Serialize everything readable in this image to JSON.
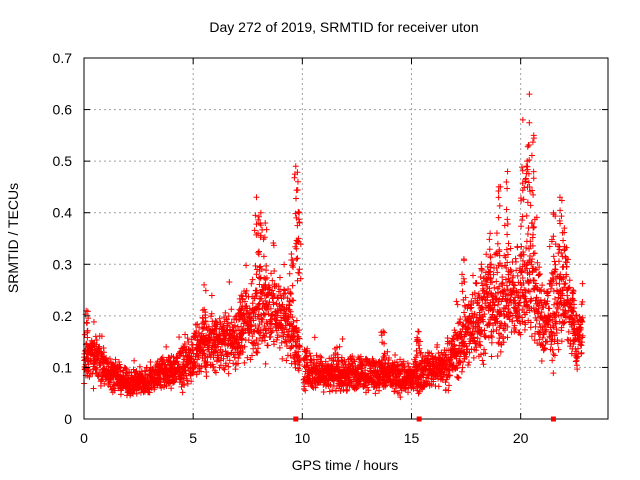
{
  "chart_data": {
    "type": "scatter",
    "title": "Day 272 of 2019, SRMTID for receiver uton",
    "xlabel": "GPS time / hours",
    "ylabel": "SRMTID / TECUs",
    "xlim": [
      0,
      24
    ],
    "ylim": [
      0,
      0.7
    ],
    "xticks": [
      0,
      5,
      10,
      15,
      20
    ],
    "xtick_labels": [
      "0",
      "5",
      "10",
      "15",
      "20"
    ],
    "yticks": [
      0,
      0.1,
      0.2,
      0.3,
      0.4,
      0.5,
      0.6,
      0.7
    ],
    "ytick_labels": [
      "0",
      "0.1",
      "0.2",
      "0.3",
      "0.4",
      "0.5",
      "0.6",
      "0.7"
    ],
    "grid": true,
    "marker": "+",
    "color": "#ff0000",
    "series": [
      {
        "name": "SRMTID",
        "envelope": [
          [
            0.0,
            0.12,
            0.04
          ],
          [
            0.5,
            0.12,
            0.04
          ],
          [
            1.0,
            0.1,
            0.03
          ],
          [
            1.5,
            0.08,
            0.025
          ],
          [
            2.0,
            0.07,
            0.02
          ],
          [
            2.5,
            0.07,
            0.025
          ],
          [
            3.0,
            0.075,
            0.025
          ],
          [
            3.5,
            0.09,
            0.03
          ],
          [
            4.0,
            0.09,
            0.03
          ],
          [
            4.5,
            0.1,
            0.035
          ],
          [
            5.0,
            0.12,
            0.045
          ],
          [
            5.5,
            0.14,
            0.05
          ],
          [
            6.0,
            0.15,
            0.05
          ],
          [
            6.5,
            0.15,
            0.05
          ],
          [
            7.0,
            0.16,
            0.055
          ],
          [
            7.5,
            0.18,
            0.06
          ],
          [
            8.0,
            0.2,
            0.08
          ],
          [
            8.5,
            0.22,
            0.08
          ],
          [
            9.0,
            0.2,
            0.07
          ],
          [
            9.5,
            0.18,
            0.06
          ],
          [
            10.0,
            0.1,
            0.04
          ],
          [
            10.5,
            0.09,
            0.03
          ],
          [
            11.0,
            0.09,
            0.03
          ],
          [
            11.5,
            0.09,
            0.03
          ],
          [
            12.0,
            0.085,
            0.03
          ],
          [
            12.5,
            0.09,
            0.03
          ],
          [
            13.0,
            0.09,
            0.03
          ],
          [
            13.5,
            0.085,
            0.03
          ],
          [
            14.0,
            0.085,
            0.03
          ],
          [
            14.5,
            0.08,
            0.03
          ],
          [
            15.0,
            0.08,
            0.03
          ],
          [
            15.5,
            0.09,
            0.03
          ],
          [
            16.0,
            0.1,
            0.03
          ],
          [
            16.5,
            0.1,
            0.035
          ],
          [
            17.0,
            0.13,
            0.05
          ],
          [
            17.5,
            0.16,
            0.06
          ],
          [
            18.0,
            0.2,
            0.08
          ],
          [
            18.5,
            0.22,
            0.08
          ],
          [
            19.0,
            0.22,
            0.08
          ],
          [
            19.5,
            0.23,
            0.08
          ],
          [
            20.0,
            0.25,
            0.09
          ],
          [
            20.5,
            0.28,
            0.12
          ],
          [
            21.0,
            0.18,
            0.07
          ],
          [
            21.5,
            0.2,
            0.08
          ],
          [
            22.0,
            0.25,
            0.09
          ],
          [
            22.5,
            0.15,
            0.05
          ],
          [
            22.8,
            0.17,
            0.05
          ]
        ],
        "spikes": [
          [
            7.9,
            0.43
          ],
          [
            8.1,
            0.4
          ],
          [
            8.3,
            0.38
          ],
          [
            9.5,
            0.32
          ],
          [
            9.7,
            0.49
          ],
          [
            9.8,
            0.46
          ],
          [
            9.85,
            0.4
          ],
          [
            19.0,
            0.45
          ],
          [
            19.4,
            0.48
          ],
          [
            20.1,
            0.58
          ],
          [
            20.4,
            0.63
          ],
          [
            20.6,
            0.55
          ],
          [
            20.3,
            0.5
          ],
          [
            21.5,
            0.4
          ],
          [
            21.8,
            0.43
          ],
          [
            22.0,
            0.37
          ],
          [
            18.6,
            0.36
          ],
          [
            17.4,
            0.31
          ],
          [
            18.2,
            0.3
          ],
          [
            22.4,
            0.25
          ],
          [
            5.5,
            0.26
          ],
          [
            7.2,
            0.24
          ],
          [
            15.3,
            0.17
          ],
          [
            13.7,
            0.17
          ],
          [
            0.1,
            0.21
          ]
        ],
        "gaps": [
          [
            9.9,
            10.05
          ],
          [
            22.9,
            24
          ]
        ]
      }
    ],
    "markers": [
      9.7,
      15.35,
      21.5
    ]
  }
}
